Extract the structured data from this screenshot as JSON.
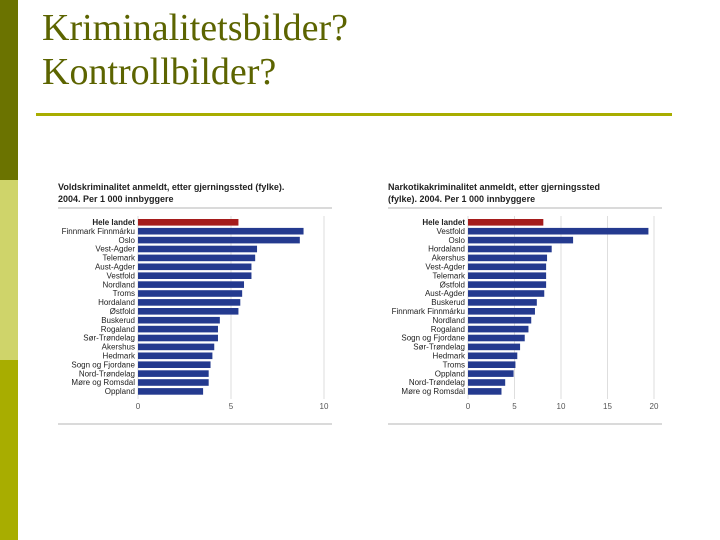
{
  "slide": {
    "title_line1": "Kriminalitetsbilder?",
    "title_line2": "Kontrollbilder?",
    "colors": {
      "sidebar_dark": "#6b7300",
      "sidebar_light": "#cfd46a",
      "sidebar_mid": "#a8ad00",
      "title": "#5c6400"
    }
  },
  "chart_data": [
    {
      "type": "bar",
      "orientation": "horizontal",
      "title": "Voldskriminalitet anmeldt, etter gjerningssted (fylke). 2004. Per 1 000 innbyggere",
      "title_line1": "Voldskriminalitet anmeldt, etter gjerningssted (fylke).",
      "title_line2": "2004. Per 1 000 innbyggere",
      "categories": [
        "Hele landet",
        "Finnmark Finnmárku",
        "Oslo",
        "Vest-Agder",
        "Telemark",
        "Aust-Agder",
        "Vestfold",
        "Nordland",
        "Troms",
        "Hordaland",
        "Østfold",
        "Buskerud",
        "Rogaland",
        "Sør-Trøndelag",
        "Akershus",
        "Hedmark",
        "Sogn og Fjordane",
        "Nord-Trøndelag",
        "Møre og Romsdal",
        "Oppland"
      ],
      "values": [
        5.4,
        8.9,
        8.7,
        6.4,
        6.3,
        6.1,
        6.1,
        5.7,
        5.6,
        5.5,
        5.4,
        4.4,
        4.3,
        4.3,
        4.1,
        4.0,
        3.9,
        3.8,
        3.8,
        3.5
      ],
      "highlight_index": 0,
      "xlim": [
        0,
        10
      ],
      "xticks": [
        "0",
        "5",
        "10"
      ],
      "xlabel": "",
      "ylabel": "",
      "colors": {
        "highlight": "#a51c1c",
        "bar": "#243a8f",
        "grid": "#d6d6d6"
      },
      "grid": true
    },
    {
      "type": "bar",
      "orientation": "horizontal",
      "title": "Narkotikakriminalitet anmeldt, etter gjerningssted (fylke). 2004. Per 1 000 innbyggere",
      "title_line1": "Narkotikakriminalitet anmeldt, etter gjerningssted",
      "title_line2": "(fylke). 2004. Per 1 000 innbyggere",
      "categories": [
        "Hele landet",
        "Vestfold",
        "Oslo",
        "Hordaland",
        "Akershus",
        "Vest-Agder",
        "Telemark",
        "Østfold",
        "Aust-Agder",
        "Buskerud",
        "Finnmark Finnmárku",
        "Nordland",
        "Rogaland",
        "Sogn og Fjordane",
        "Sør-Trøndelag",
        "Hedmark",
        "Troms",
        "Oppland",
        "Nord-Trøndelag",
        "Møre og Romsdal"
      ],
      "values": [
        8.1,
        19.4,
        11.3,
        9.0,
        8.5,
        8.4,
        8.4,
        8.4,
        8.2,
        7.4,
        7.2,
        6.8,
        6.5,
        6.1,
        5.6,
        5.3,
        5.1,
        4.9,
        4.0,
        3.6
      ],
      "highlight_index": 0,
      "xlim": [
        0,
        20
      ],
      "xticks": [
        "0",
        "5",
        "10",
        "15",
        "20"
      ],
      "xlabel": "",
      "ylabel": "",
      "colors": {
        "highlight": "#a51c1c",
        "bar": "#243a8f",
        "grid": "#d6d6d6"
      },
      "grid": true
    }
  ]
}
